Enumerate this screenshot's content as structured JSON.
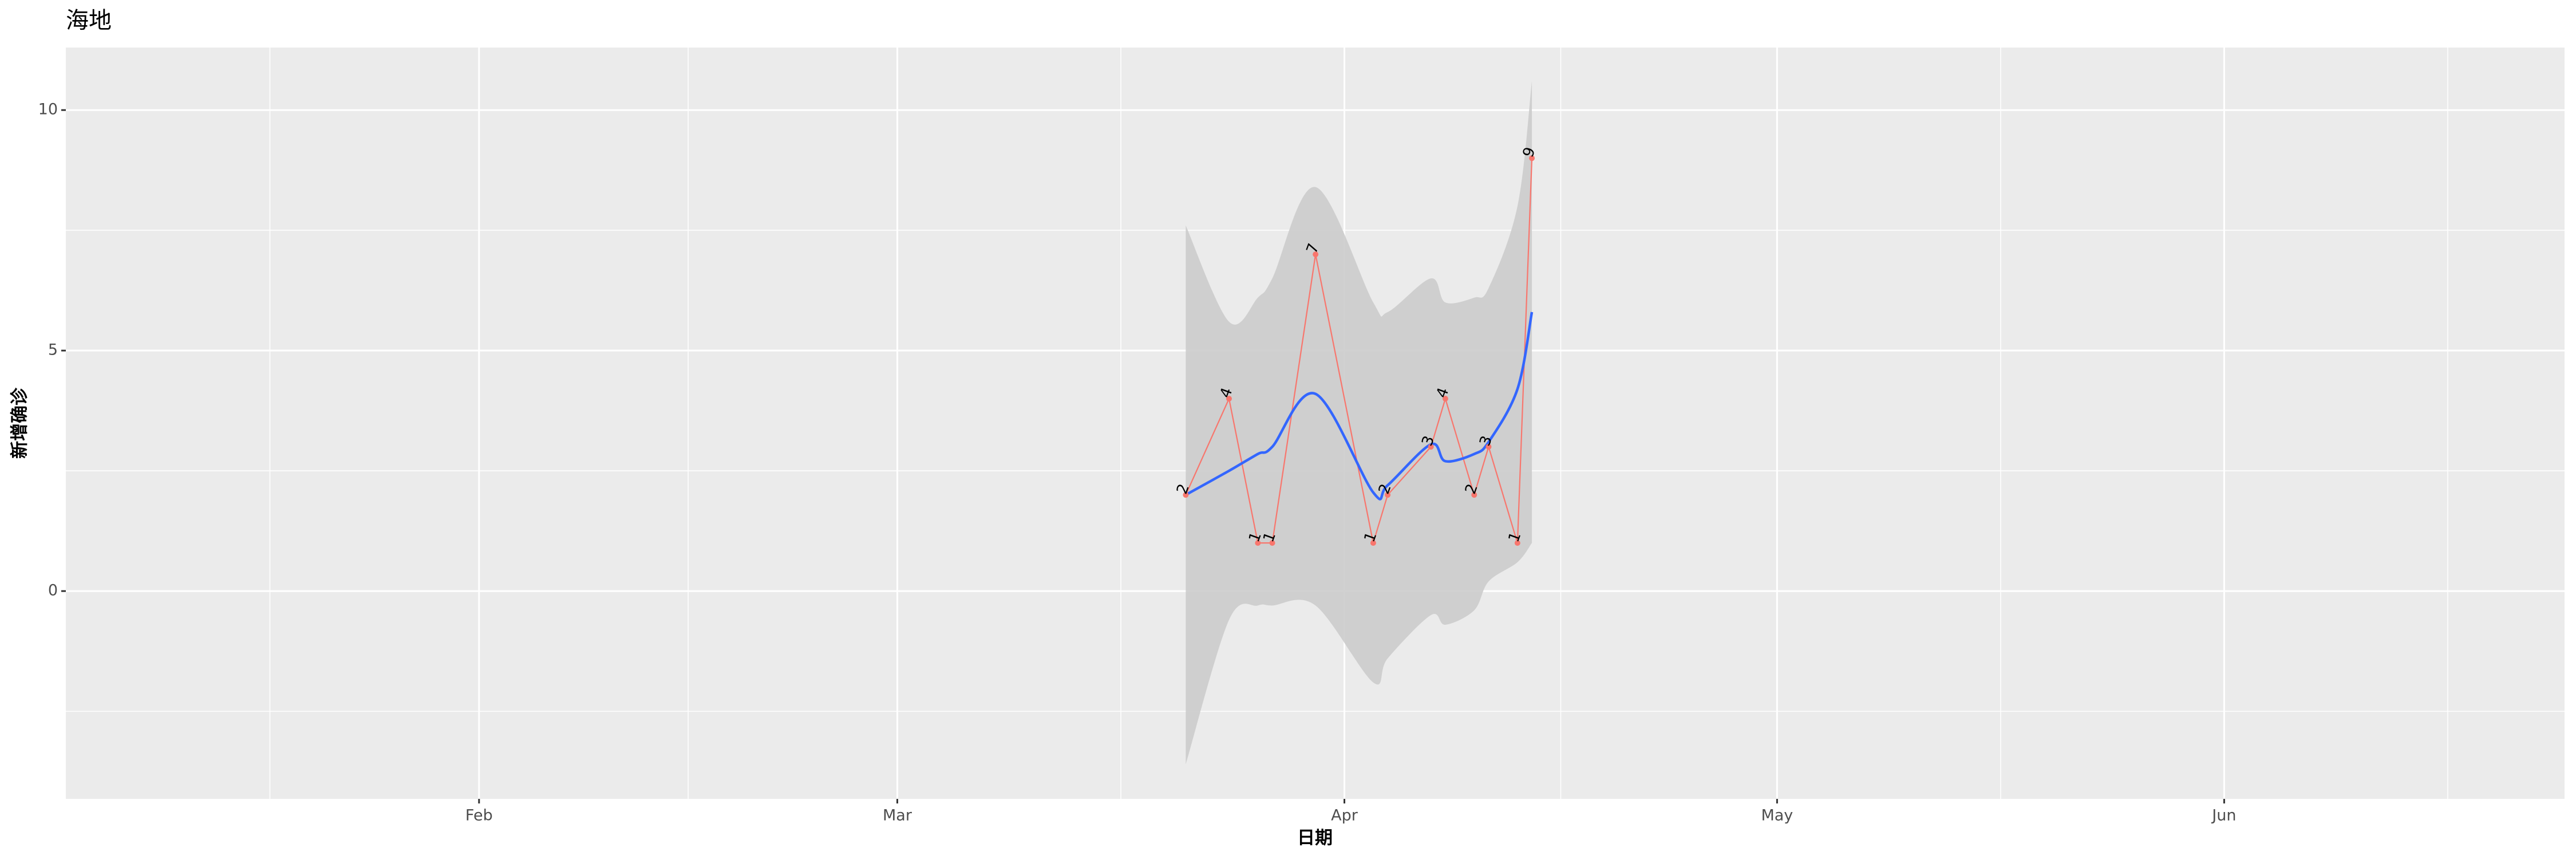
{
  "chart_data": {
    "type": "line",
    "title": "海地",
    "x_label": "日期",
    "y_label": "新增确诊",
    "x": [
      81,
      84,
      86,
      87,
      90,
      94,
      95,
      98,
      99,
      101,
      102,
      104,
      105
    ],
    "values": [
      2,
      4,
      1,
      1,
      7,
      1,
      2,
      3,
      4,
      2,
      3,
      1,
      9
    ],
    "color": "#f8766d",
    "smooth": {
      "color": "#3366ff",
      "band_color": "#cccccc",
      "values": [
        2.0,
        2.5,
        2.85,
        3.0,
        4.1,
        2.05,
        2.2,
        3.05,
        2.7,
        2.85,
        3.1,
        4.2,
        5.8
      ],
      "lower": [
        -3.6,
        -0.6,
        -0.3,
        -0.3,
        -0.3,
        -1.9,
        -1.4,
        -0.5,
        -0.7,
        -0.4,
        0.2,
        0.6,
        1.0
      ],
      "upper": [
        7.6,
        5.6,
        6.1,
        6.5,
        8.4,
        6.0,
        5.8,
        6.5,
        6.0,
        6.1,
        6.3,
        8.0,
        10.6
      ]
    },
    "xlim": [
      3.35,
      176.6
    ],
    "xticks": [
      {
        "value": 32,
        "label": "Feb"
      },
      {
        "value": 61,
        "label": "Mar"
      },
      {
        "value": 92,
        "label": "Apr"
      },
      {
        "value": 122,
        "label": "May"
      },
      {
        "value": 153,
        "label": "Jun"
      }
    ],
    "ylim": [
      -4.32,
      11.3
    ],
    "yticks": [
      0,
      5,
      10
    ],
    "grid": true
  }
}
